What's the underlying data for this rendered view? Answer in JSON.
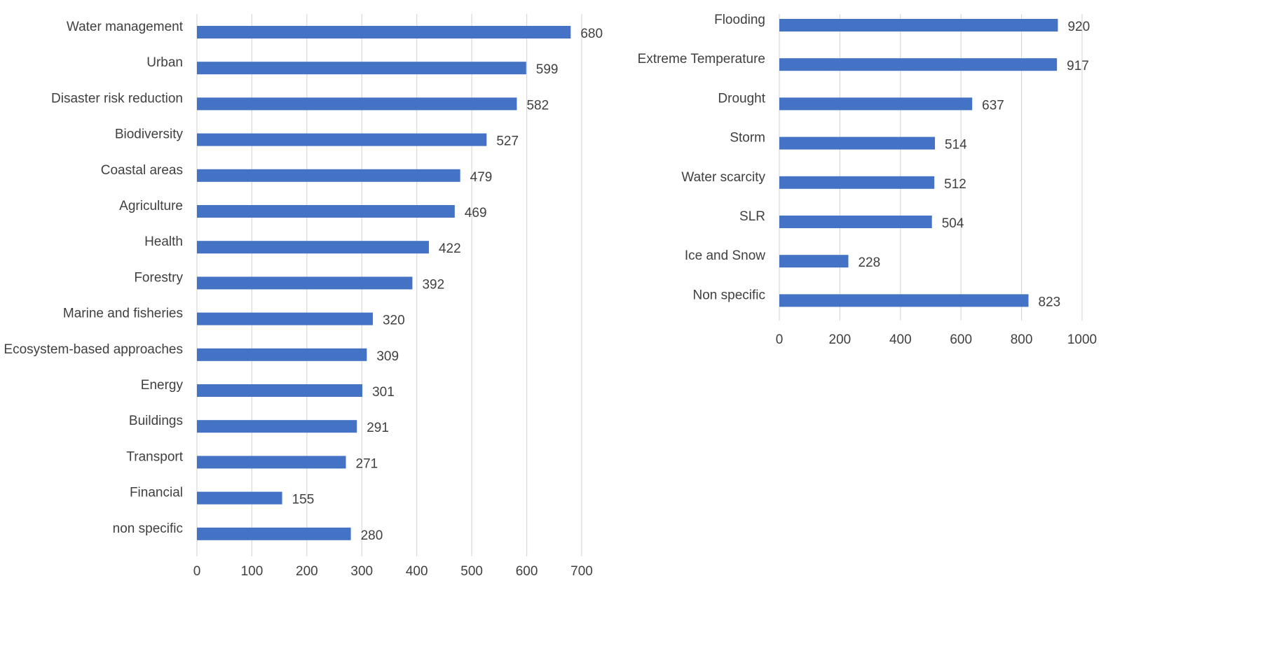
{
  "chart_data": [
    {
      "type": "bar",
      "orientation": "horizontal",
      "categories": [
        "Water management",
        "Urban",
        "Disaster risk reduction",
        "Biodiversity",
        "Coastal areas",
        "Agriculture",
        "Health",
        "Forestry",
        "Marine and fisheries",
        "Ecosystem-based approaches",
        "Energy",
        "Buildings",
        "Transport",
        "Financial",
        "non specific"
      ],
      "values": [
        680,
        599,
        582,
        527,
        479,
        469,
        422,
        392,
        320,
        309,
        301,
        291,
        271,
        155,
        280
      ],
      "xlim": [
        0,
        700
      ],
      "xticks": [
        "0",
        "100",
        "200",
        "300",
        "400",
        "500",
        "600",
        "700"
      ],
      "grid": "vertical",
      "data_labels": true
    },
    {
      "type": "bar",
      "orientation": "horizontal",
      "categories": [
        "Flooding",
        "Extreme Temperature",
        "Drought",
        "Storm",
        "Water scarcity",
        "SLR",
        "Ice and Snow",
        "Non specific"
      ],
      "values": [
        920,
        917,
        637,
        514,
        512,
        504,
        228,
        823
      ],
      "xlim": [
        0,
        1000
      ],
      "xticks": [
        "0",
        "200",
        "400",
        "600",
        "800",
        "1000"
      ],
      "grid": "vertical",
      "data_labels": true
    }
  ],
  "colors": {
    "bar": "#4472C4",
    "grid": "#D9D9D9",
    "text": "#404040"
  }
}
